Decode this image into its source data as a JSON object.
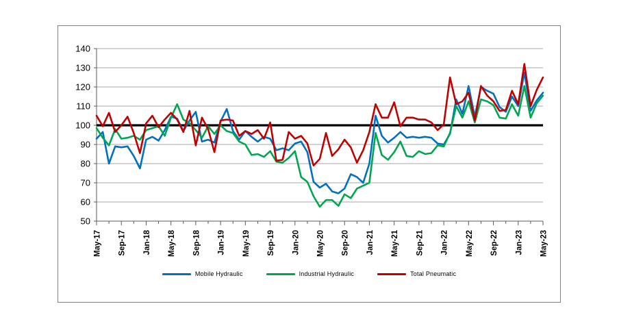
{
  "figure": {
    "background": "#ffffff",
    "border_color": "#7f7f7f",
    "baseline_color": "#000000",
    "grid_color": "#a6a6a6",
    "axis_color": "#595959"
  },
  "chart_data": {
    "type": "line",
    "title": "",
    "xlabel": "",
    "ylabel": "",
    "ylim": [
      50,
      140
    ],
    "ytick_step": 10,
    "baseline": 100,
    "grid": true,
    "legend_position": "bottom",
    "x_label_every": 4,
    "x": [
      "May-17",
      "Jun-17",
      "Jul-17",
      "Aug-17",
      "Sep-17",
      "Oct-17",
      "Nov-17",
      "Dec-17",
      "Jan-18",
      "Feb-18",
      "Mar-18",
      "Apr-18",
      "May-18",
      "Jun-18",
      "Jul-18",
      "Aug-18",
      "Sep-18",
      "Oct-18",
      "Nov-18",
      "Dec-18",
      "Jan-19",
      "Feb-19",
      "Mar-19",
      "Apr-19",
      "May-19",
      "Jun-19",
      "Jul-19",
      "Aug-19",
      "Sep-19",
      "Oct-19",
      "Nov-19",
      "Dec-19",
      "Jan-20",
      "Feb-20",
      "Mar-20",
      "Apr-20",
      "May-20",
      "Jun-20",
      "Jul-20",
      "Aug-20",
      "Sep-20",
      "Oct-20",
      "Nov-20",
      "Dec-20",
      "Jan-21",
      "Feb-21",
      "Mar-21",
      "Apr-21",
      "May-21",
      "Jun-21",
      "Jul-21",
      "Aug-21",
      "Sep-21",
      "Oct-21",
      "Nov-21",
      "Dec-21",
      "Jan-22",
      "Feb-22",
      "Mar-22",
      "Apr-22",
      "May-22",
      "Jun-22",
      "Jul-22",
      "Aug-22",
      "Sep-22",
      "Oct-22",
      "Nov-22",
      "Dec-22",
      "Jan-23",
      "Feb-23",
      "Mar-23",
      "Apr-23",
      "May-23"
    ],
    "series": [
      {
        "name": "Mobile Hydraulic",
        "color": "#0070C0",
        "values": [
          93,
          96.5,
          80,
          89,
          88.5,
          89,
          84,
          77.5,
          92.5,
          94,
          92,
          97.5,
          104.5,
          103.5,
          97,
          102.5,
          107,
          91.5,
          92.5,
          91,
          102,
          108.5,
          97,
          92.5,
          97,
          94,
          91.5,
          94,
          93,
          87,
          88,
          87,
          90.5,
          91.5,
          86,
          70.5,
          67.5,
          69.5,
          65.5,
          64.5,
          67,
          74.5,
          73,
          70,
          80,
          105,
          94.5,
          91,
          93.5,
          96.5,
          93.5,
          94,
          93.5,
          94,
          93.5,
          90.5,
          90,
          95.5,
          113.5,
          106,
          120.5,
          104.5,
          120,
          118,
          116.5,
          109.5,
          107,
          115,
          110,
          127.5,
          107.5,
          113,
          117
        ]
      },
      {
        "name": "Industrial Hydraulic",
        "color": "#00A550",
        "values": [
          98.5,
          93.5,
          89.5,
          98,
          93,
          93.5,
          94.5,
          92.5,
          97.5,
          98.5,
          99.5,
          94.5,
          104,
          111,
          103,
          101,
          97.5,
          93.5,
          99.5,
          95.5,
          100,
          97,
          96,
          91.5,
          90,
          84.5,
          85,
          83.5,
          86.5,
          81,
          80.5,
          83,
          86.5,
          73,
          70.5,
          63,
          57.5,
          61,
          61,
          58,
          64,
          62,
          67,
          68.5,
          70,
          96,
          84.5,
          82,
          86,
          91.5,
          84,
          83.5,
          86.5,
          85,
          85.5,
          89.5,
          89,
          96,
          110,
          104,
          112.5,
          101.5,
          113.5,
          112.5,
          110.5,
          104,
          103.5,
          111,
          105,
          120.5,
          104,
          111.5,
          115.5
        ]
      },
      {
        "name": "Total Pneumatic",
        "color": "#C00000",
        "values": [
          105,
          99.5,
          106.5,
          96.5,
          100,
          104.5,
          96,
          85.5,
          101,
          105,
          99,
          103,
          106.5,
          103,
          96.5,
          107.5,
          89.5,
          104,
          98,
          86,
          102.5,
          103,
          102.5,
          94.5,
          97,
          95.5,
          97.5,
          93,
          101.5,
          81.5,
          82,
          96.5,
          93,
          94.5,
          90.5,
          79,
          82.5,
          96,
          84,
          87.5,
          92.5,
          88.5,
          80.5,
          87,
          96.5,
          111,
          104,
          104,
          112,
          99.5,
          104,
          104,
          103,
          103,
          101.5,
          97.5,
          100.5,
          125,
          111,
          112.5,
          117,
          102.5,
          120.5,
          115.5,
          112.5,
          107.5,
          108,
          118,
          111,
          132,
          110,
          118.5,
          125
        ]
      }
    ]
  }
}
